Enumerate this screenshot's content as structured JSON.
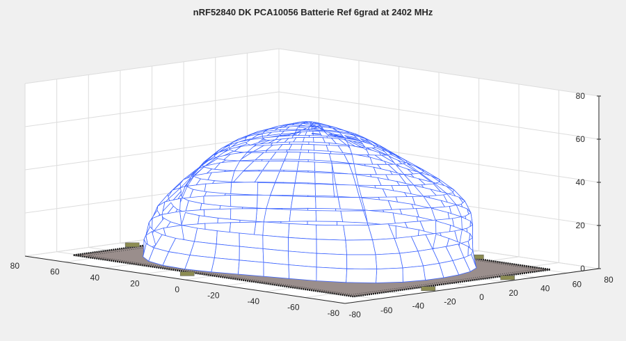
{
  "chart_data": {
    "type": "surface",
    "title": "nRF52840 DK PCA10056 Batterie Ref 6grad at 2402 MHz",
    "xlabel": "",
    "ylabel": "",
    "zlabel": "",
    "x_ticks": [
      "80",
      "60",
      "40",
      "20",
      "0",
      "-20",
      "-40",
      "-60",
      "-80"
    ],
    "y_ticks": [
      "-80",
      "-60",
      "-40",
      "-20",
      "0",
      "20",
      "40",
      "60",
      "80"
    ],
    "z_ticks": [
      "0",
      "20",
      "40",
      "60",
      "80"
    ],
    "xlim": [
      -80,
      80
    ],
    "ylim": [
      -80,
      80
    ],
    "zlim": [
      0,
      80
    ],
    "grid": true,
    "view": "3d",
    "surface": {
      "shape": "dome",
      "apex_height": 62,
      "base_radius": 65,
      "edge_color": "#3c64ff",
      "face_color": "#ffffff"
    },
    "board_outline": {
      "color": "#9a8e8c",
      "x_range": [
        -80,
        80
      ],
      "y_range": [
        -80,
        80
      ]
    }
  }
}
